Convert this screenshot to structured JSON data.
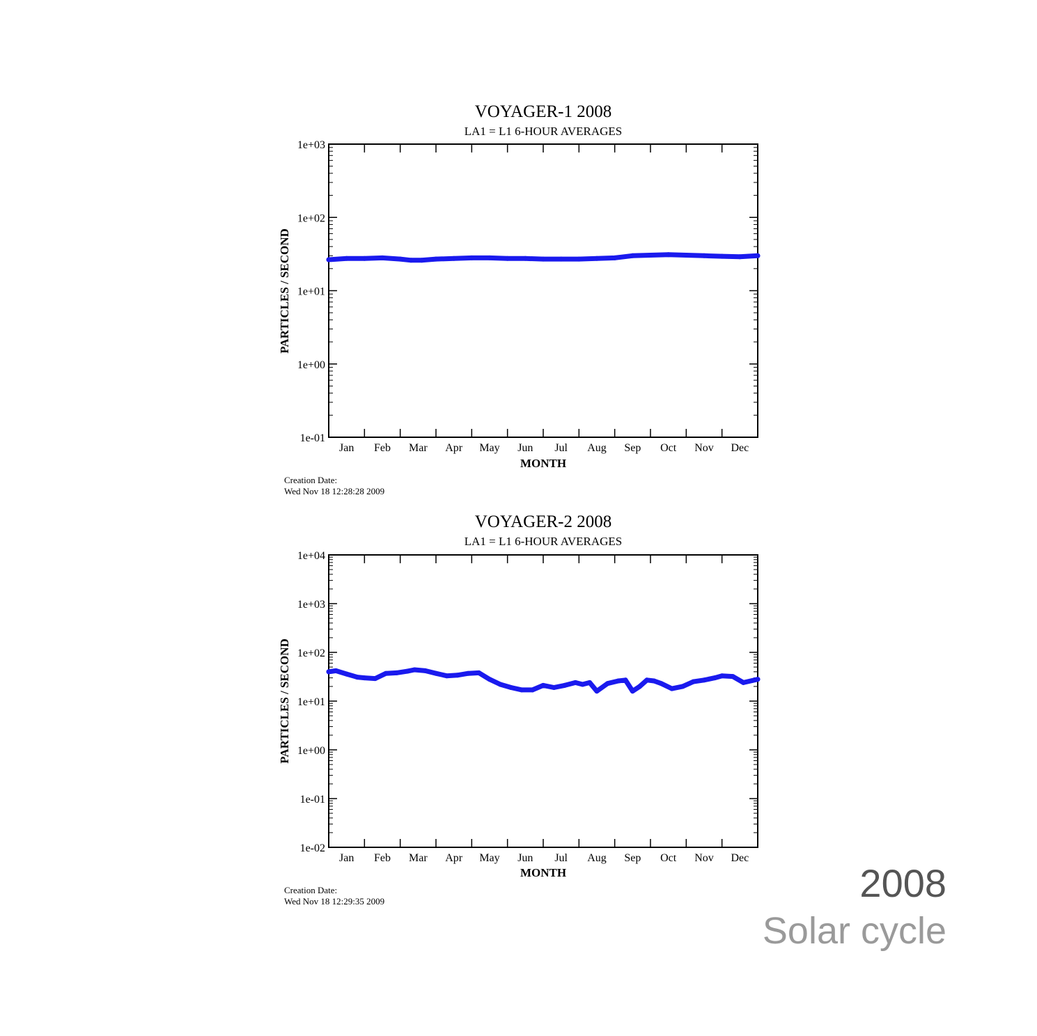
{
  "caption": {
    "year": "2008",
    "subtitle": "Solar cycle"
  },
  "colors": {
    "series": "#1a1aee",
    "axis": "#000000"
  },
  "chart_data": [
    {
      "type": "line",
      "title": "VOYAGER-1  2008",
      "subtitle": "LA1 = L1  6-HOUR AVERAGES",
      "xlabel": "MONTH",
      "ylabel": "PARTICLES / SECOND",
      "yscale": "log",
      "ylim": [
        0.1,
        1000
      ],
      "yticks": [
        "1e-01",
        "1e+00",
        "1e+01",
        "1e+02",
        "1e+03"
      ],
      "categories": [
        "Jan",
        "Feb",
        "Mar",
        "Apr",
        "May",
        "Jun",
        "Jul",
        "Aug",
        "Sep",
        "Oct",
        "Nov",
        "Dec"
      ],
      "xlim": [
        0,
        12
      ],
      "grid": false,
      "creation_label": "Creation Date:",
      "creation_date": "Wed Nov 18 12:28:28 2009",
      "series": [
        {
          "x": [
            0,
            0.5,
            1.0,
            1.5,
            2.0,
            2.3,
            2.6,
            3.0,
            3.5,
            4.0,
            4.5,
            5.0,
            5.5,
            6.0,
            6.5,
            7.0,
            7.5,
            8.0,
            8.5,
            9.0,
            9.5,
            10.0,
            10.5,
            11.0,
            11.5,
            12.0
          ],
          "y": [
            26.5,
            27.5,
            27.5,
            28,
            27,
            26,
            26,
            27,
            27.5,
            28,
            28,
            27.5,
            27.5,
            27,
            27,
            27,
            27.5,
            28,
            30,
            30.5,
            31,
            30.5,
            30,
            29.5,
            29,
            30
          ]
        }
      ]
    },
    {
      "type": "line",
      "title": "VOYAGER-2  2008",
      "subtitle": "LA1 = L1  6-HOUR AVERAGES",
      "xlabel": "MONTH",
      "ylabel": "PARTICLES / SECOND",
      "yscale": "log",
      "ylim": [
        0.01,
        10000
      ],
      "yticks": [
        "1e-02",
        "1e-01",
        "1e+00",
        "1e+01",
        "1e+02",
        "1e+03",
        "1e+04"
      ],
      "categories": [
        "Jan",
        "Feb",
        "Mar",
        "Apr",
        "May",
        "Jun",
        "Jul",
        "Aug",
        "Sep",
        "Oct",
        "Nov",
        "Dec"
      ],
      "xlim": [
        0,
        12
      ],
      "grid": false,
      "creation_label": "Creation Date:",
      "creation_date": "Wed Nov 18 12:29:35 2009",
      "series": [
        {
          "x": [
            0,
            0.2,
            0.5,
            0.8,
            1.0,
            1.3,
            1.6,
            1.9,
            2.2,
            2.4,
            2.7,
            3.0,
            3.3,
            3.6,
            3.9,
            4.2,
            4.5,
            4.8,
            5.1,
            5.4,
            5.7,
            6.0,
            6.3,
            6.6,
            6.9,
            7.1,
            7.3,
            7.5,
            7.8,
            8.1,
            8.3,
            8.5,
            8.7,
            8.9,
            9.1,
            9.3,
            9.6,
            9.9,
            10.2,
            10.5,
            10.8,
            11.0,
            11.3,
            11.6,
            12.0
          ],
          "y": [
            40,
            42,
            36,
            31,
            30,
            29,
            37,
            38,
            41,
            44,
            42,
            37,
            33,
            34,
            37,
            38,
            28,
            22,
            19,
            17,
            17,
            21,
            19,
            21,
            24,
            22,
            24,
            16,
            23,
            26,
            27,
            16,
            20,
            27,
            26,
            23,
            18,
            20,
            25,
            27,
            30,
            33,
            32,
            24,
            28
          ]
        }
      ]
    }
  ]
}
